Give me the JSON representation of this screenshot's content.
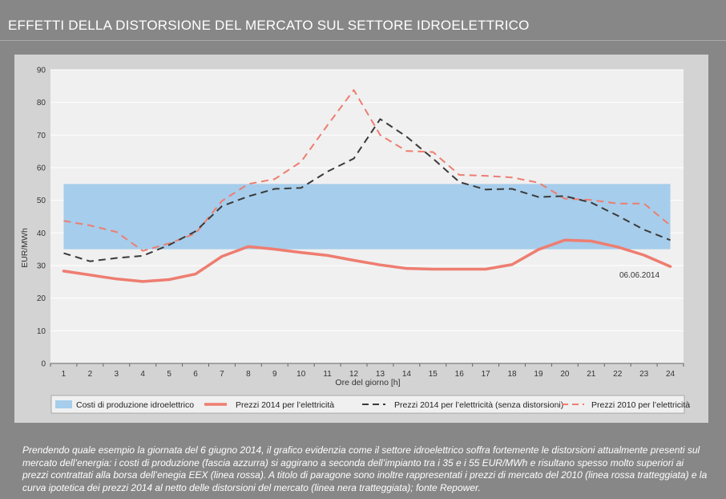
{
  "page": {
    "title": "EFFETTI DELLA DISTORSIONE DEL MERCATO SUL SETTORE IDROELETTRICO",
    "caption": "Prendendo quale esempio la giornata del 6 giugno 2014, il grafico evidenzia come il settore idroelettrico soffra fortemente le distorsioni attualmente presenti sul mercato dell’energia: i costi di produzione (fascia azzurra) si aggirano a seconda dell’impianto tra i 35 e i 55 EUR/MWh e risultano spesso molto superiori ai prezzi contrattati alla borsa dell’enegia EEX (linea rossa). A titolo di paragone sono inoltre rappresentati i prezzi di mercato del 2010 (linea rossa tratteggiata) e la curva ipotetica dei prezzi 2014 al netto delle distorsioni del mercato (linea nera tratteggiata); fonte Repower."
  },
  "chart_data": {
    "type": "line",
    "xlabel": "Ore del giorno [h]",
    "ylabel": "EUR/MWh",
    "x": [
      1,
      2,
      3,
      4,
      5,
      6,
      7,
      8,
      9,
      10,
      11,
      12,
      13,
      14,
      15,
      16,
      17,
      18,
      19,
      20,
      21,
      22,
      23,
      24
    ],
    "xlim": [
      0.5,
      24.5
    ],
    "ylim": [
      0,
      90
    ],
    "yticks": [
      0,
      10,
      20,
      30,
      40,
      50,
      60,
      70,
      80,
      90
    ],
    "grid": true,
    "annotation": "06.06.2014",
    "band": {
      "name": "Costi di produzione idroelettrico",
      "y_low": 35,
      "y_high": 55,
      "color": "#a6cdeb"
    },
    "series": [
      {
        "name": "Prezzi 2014 per l’elettricità",
        "style": "solid",
        "color": "#ee7d70",
        "values": [
          28.3,
          27.1,
          25.9,
          25.1,
          25.7,
          27.4,
          32.8,
          35.8,
          35.0,
          34.0,
          33.1,
          31.6,
          30.2,
          29.1,
          28.9,
          28.9,
          28.9,
          30.3,
          34.9,
          37.8,
          37.5,
          35.7,
          33.2,
          29.7
        ]
      },
      {
        "name": "Prezzi 2014 per l’elettricità (senza distorsioni)",
        "style": "dashed",
        "color": "#3a3a3a",
        "values": [
          33.8,
          31.3,
          32.3,
          33.0,
          36.3,
          40.5,
          48.2,
          51.2,
          53.5,
          53.8,
          58.8,
          62.8,
          74.9,
          69.5,
          62.8,
          55.6,
          53.3,
          53.5,
          51.0,
          51.3,
          49.3,
          45.3,
          41.0,
          37.8
        ]
      },
      {
        "name": "Prezzi 2010 per l’elettricità",
        "style": "dashed",
        "color": "#ee7d70",
        "values": [
          43.7,
          42.3,
          40.3,
          34.5,
          36.8,
          39.8,
          49.8,
          55.0,
          56.5,
          61.8,
          73.0,
          83.8,
          70.0,
          65.1,
          64.8,
          57.8,
          57.5,
          57.0,
          55.4,
          50.5,
          50.1,
          49.0,
          49.0,
          42.3
        ]
      }
    ]
  }
}
